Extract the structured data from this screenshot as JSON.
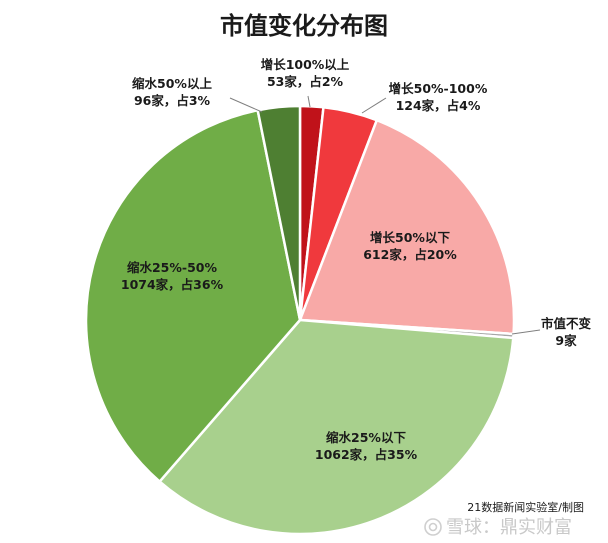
{
  "chart_data": {
    "type": "pie",
    "title": "市值变化分布图",
    "slices": [
      {
        "label": "增长100%以上",
        "count_text": "53家，占2%",
        "value": 53,
        "percent": 2,
        "color": "#c0121a"
      },
      {
        "label": "增长50%-100%",
        "count_text": "124家，占4%",
        "value": 124,
        "percent": 4,
        "color": "#f0393d"
      },
      {
        "label": "增长50%以下",
        "count_text": "612家，占20%",
        "value": 612,
        "percent": 20,
        "color": "#f8a9a7"
      },
      {
        "label": "市值不变",
        "count_text": "9家",
        "value": 9,
        "percent": 0.3,
        "color": "#a6a6a6"
      },
      {
        "label": "缩水25%以下",
        "count_text": "1062家，占35%",
        "value": 1062,
        "percent": 35,
        "color": "#a8d08d"
      },
      {
        "label": "缩水25%-50%",
        "count_text": "1074家，占36%",
        "value": 1074,
        "percent": 36,
        "color": "#70ad47"
      },
      {
        "label": "缩水50%以上",
        "count_text": "96家，占3%",
        "value": 96,
        "percent": 3,
        "color": "#4e7f32"
      }
    ],
    "legend": "none"
  },
  "credit": "21数据新闻实验室/制图",
  "watermark": "雪球：鼎实财富"
}
